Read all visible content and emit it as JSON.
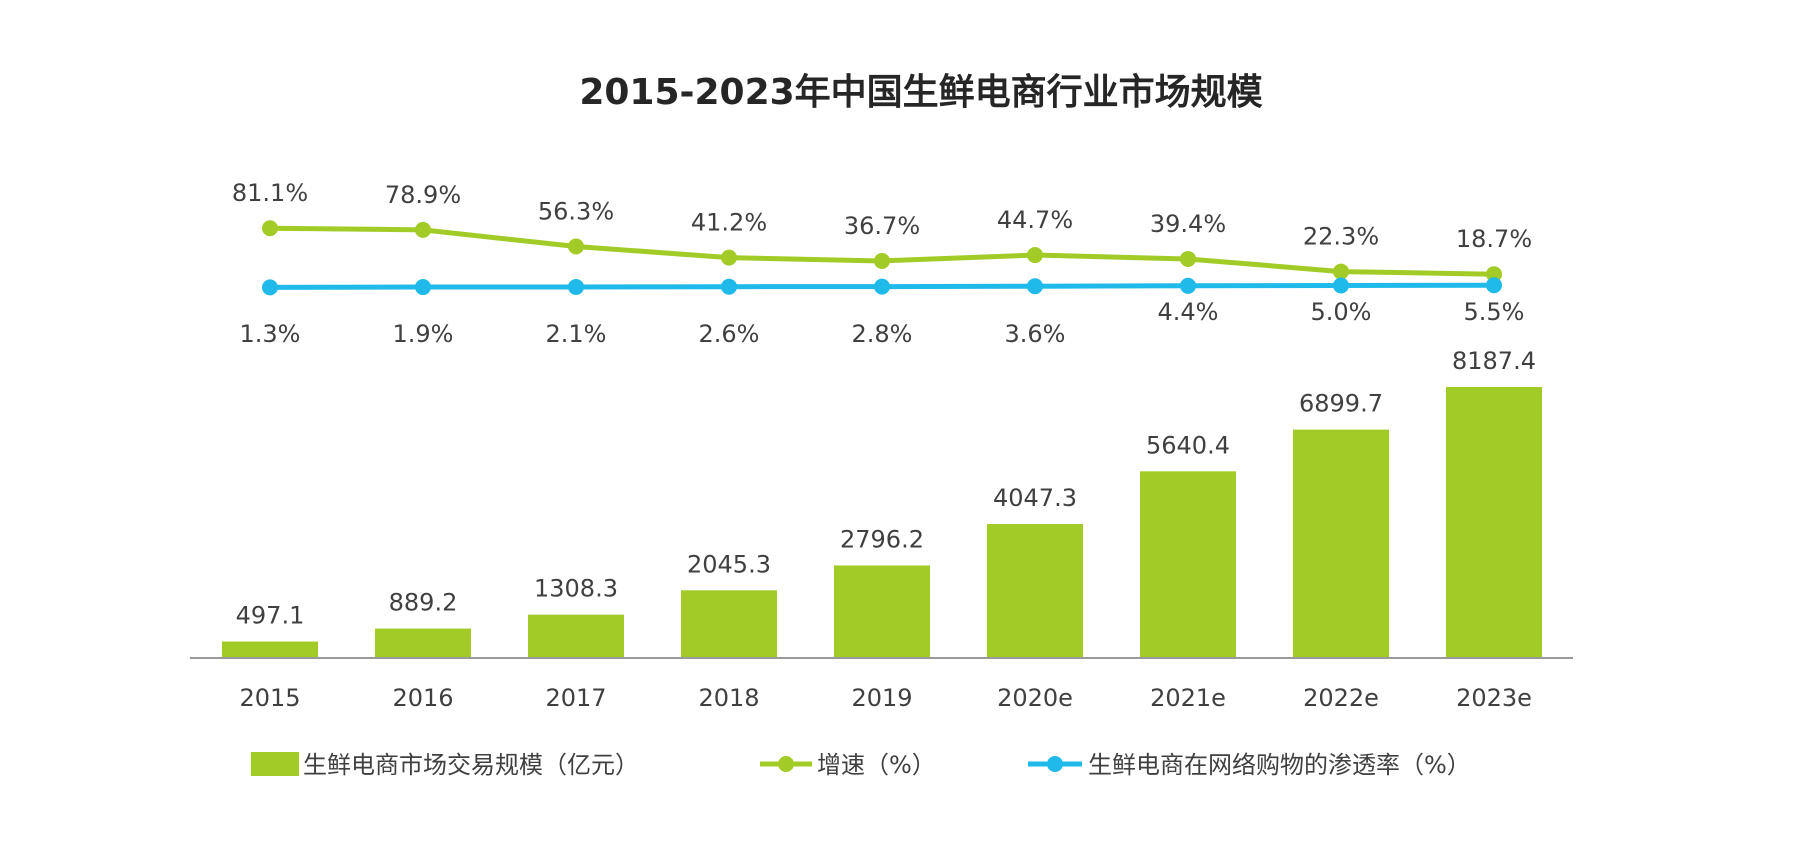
{
  "chart_data": {
    "type": "bar+line",
    "title": "2015-2023年中国生鲜电商行业市场规模",
    "categories": [
      "2015",
      "2016",
      "2017",
      "2018",
      "2019",
      "2020e",
      "2021e",
      "2022e",
      "2023e"
    ],
    "series": [
      {
        "name": "生鲜电商市场交易规模（亿元）",
        "type": "bar",
        "color": "#A3CB28",
        "values": [
          497.1,
          889.2,
          1308.3,
          2045.3,
          2796.2,
          4047.3,
          5640.4,
          6899.7,
          8187.4
        ],
        "labels": [
          "497.1",
          "889.2",
          "1308.3",
          "2045.3",
          "2796.2",
          "4047.3",
          "5640.4",
          "6899.7",
          "8187.4"
        ]
      },
      {
        "name": "增速（%）",
        "type": "line",
        "color": "#A3CB28",
        "values": [
          81.1,
          78.9,
          56.3,
          41.2,
          36.7,
          44.7,
          39.4,
          22.3,
          18.7
        ],
        "labels": [
          "81.1%",
          "78.9%",
          "56.3%",
          "41.2%",
          "36.7%",
          "44.7%",
          "39.4%",
          "22.3%",
          "18.7%"
        ]
      },
      {
        "name": "生鲜电商在网络购物的渗透率（%）",
        "type": "line",
        "color": "#1FBAEA",
        "values": [
          1.3,
          1.9,
          2.1,
          2.6,
          2.8,
          3.6,
          4.4,
          5.0,
          5.5
        ],
        "labels": [
          "1.3%",
          "1.9%",
          "2.1%",
          "2.6%",
          "2.8%",
          "3.6%",
          "4.4%",
          "5.0%",
          "5.5%"
        ]
      }
    ],
    "grid": false,
    "legend": "bottom",
    "y_axis_visible": false
  }
}
